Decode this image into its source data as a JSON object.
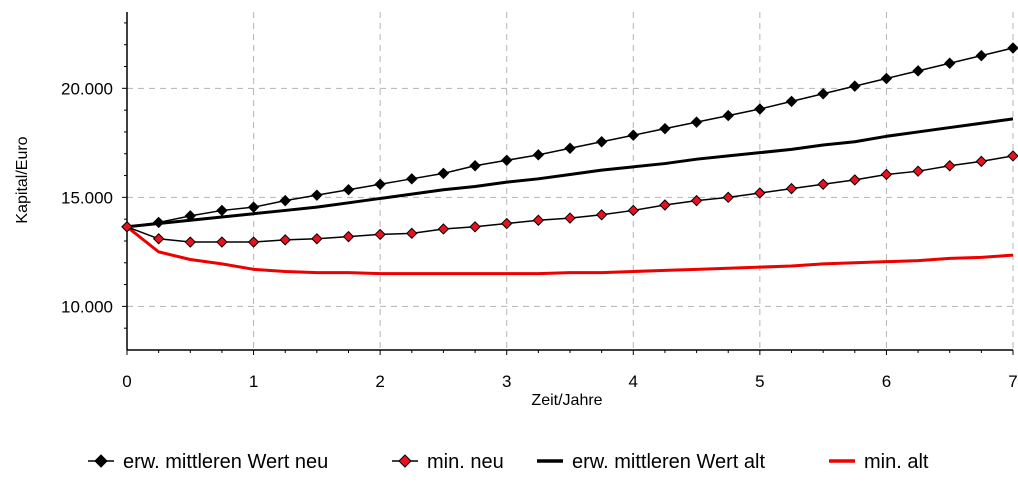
{
  "chart_data": {
    "type": "line",
    "xlabel": "Zeit/Jahre",
    "ylabel": "Kapital/Euro",
    "xlim": [
      0,
      7
    ],
    "ylim": [
      8000,
      23500
    ],
    "x_ticks": [
      0,
      1,
      2,
      3,
      4,
      5,
      6,
      7
    ],
    "x_tick_labels": [
      "0",
      "1",
      "2",
      "3",
      "4",
      "5",
      "6",
      "7"
    ],
    "y_ticks": [
      10000,
      15000,
      20000
    ],
    "y_tick_labels": [
      "10.000",
      "15.000",
      "20.000"
    ],
    "grid": true,
    "legend_position": "bottom",
    "x": [
      0,
      0.25,
      0.5,
      0.75,
      1,
      1.25,
      1.5,
      1.75,
      2,
      2.25,
      2.5,
      2.75,
      3,
      3.25,
      3.5,
      3.75,
      4,
      4.25,
      4.5,
      4.75,
      5,
      5.25,
      5.5,
      5.75,
      6,
      6.25,
      6.5,
      6.75,
      7
    ],
    "series": [
      {
        "name": "erw. mittleren Wert neu",
        "color": "#000000",
        "marker": "diamond",
        "marker_fill": "#000000",
        "values": [
          13650,
          13850,
          14150,
          14400,
          14550,
          14850,
          15100,
          15350,
          15600,
          15850,
          16100,
          16450,
          16700,
          16950,
          17250,
          17550,
          17850,
          18150,
          18450,
          18750,
          19050,
          19400,
          19750,
          20100,
          20450,
          20800,
          21150,
          21500,
          21850
        ]
      },
      {
        "name": "min. neu",
        "color": "#000000",
        "marker": "diamond",
        "marker_fill": "#e8111f",
        "values": [
          13650,
          13100,
          12950,
          12950,
          12950,
          13050,
          13100,
          13200,
          13300,
          13350,
          13550,
          13650,
          13800,
          13950,
          14050,
          14200,
          14400,
          14650,
          14850,
          15000,
          15200,
          15400,
          15600,
          15800,
          16050,
          16200,
          16450,
          16650,
          16900
        ]
      },
      {
        "name": "erw. mittleren Wert alt",
        "color": "#000000",
        "marker": "none",
        "values": [
          13650,
          13800,
          13950,
          14100,
          14250,
          14400,
          14550,
          14750,
          14950,
          15150,
          15350,
          15500,
          15700,
          15850,
          16050,
          16250,
          16400,
          16550,
          16750,
          16900,
          17050,
          17200,
          17400,
          17550,
          17800,
          18000,
          18200,
          18400,
          18600
        ]
      },
      {
        "name": "min. alt",
        "color": "#ee0000",
        "marker": "none",
        "values": [
          13650,
          12500,
          12150,
          11950,
          11700,
          11600,
          11550,
          11550,
          11500,
          11500,
          11500,
          11500,
          11500,
          11500,
          11550,
          11550,
          11600,
          11650,
          11700,
          11750,
          11800,
          11850,
          11950,
          12000,
          12050,
          12100,
          12200,
          12250,
          12350
        ]
      }
    ]
  }
}
